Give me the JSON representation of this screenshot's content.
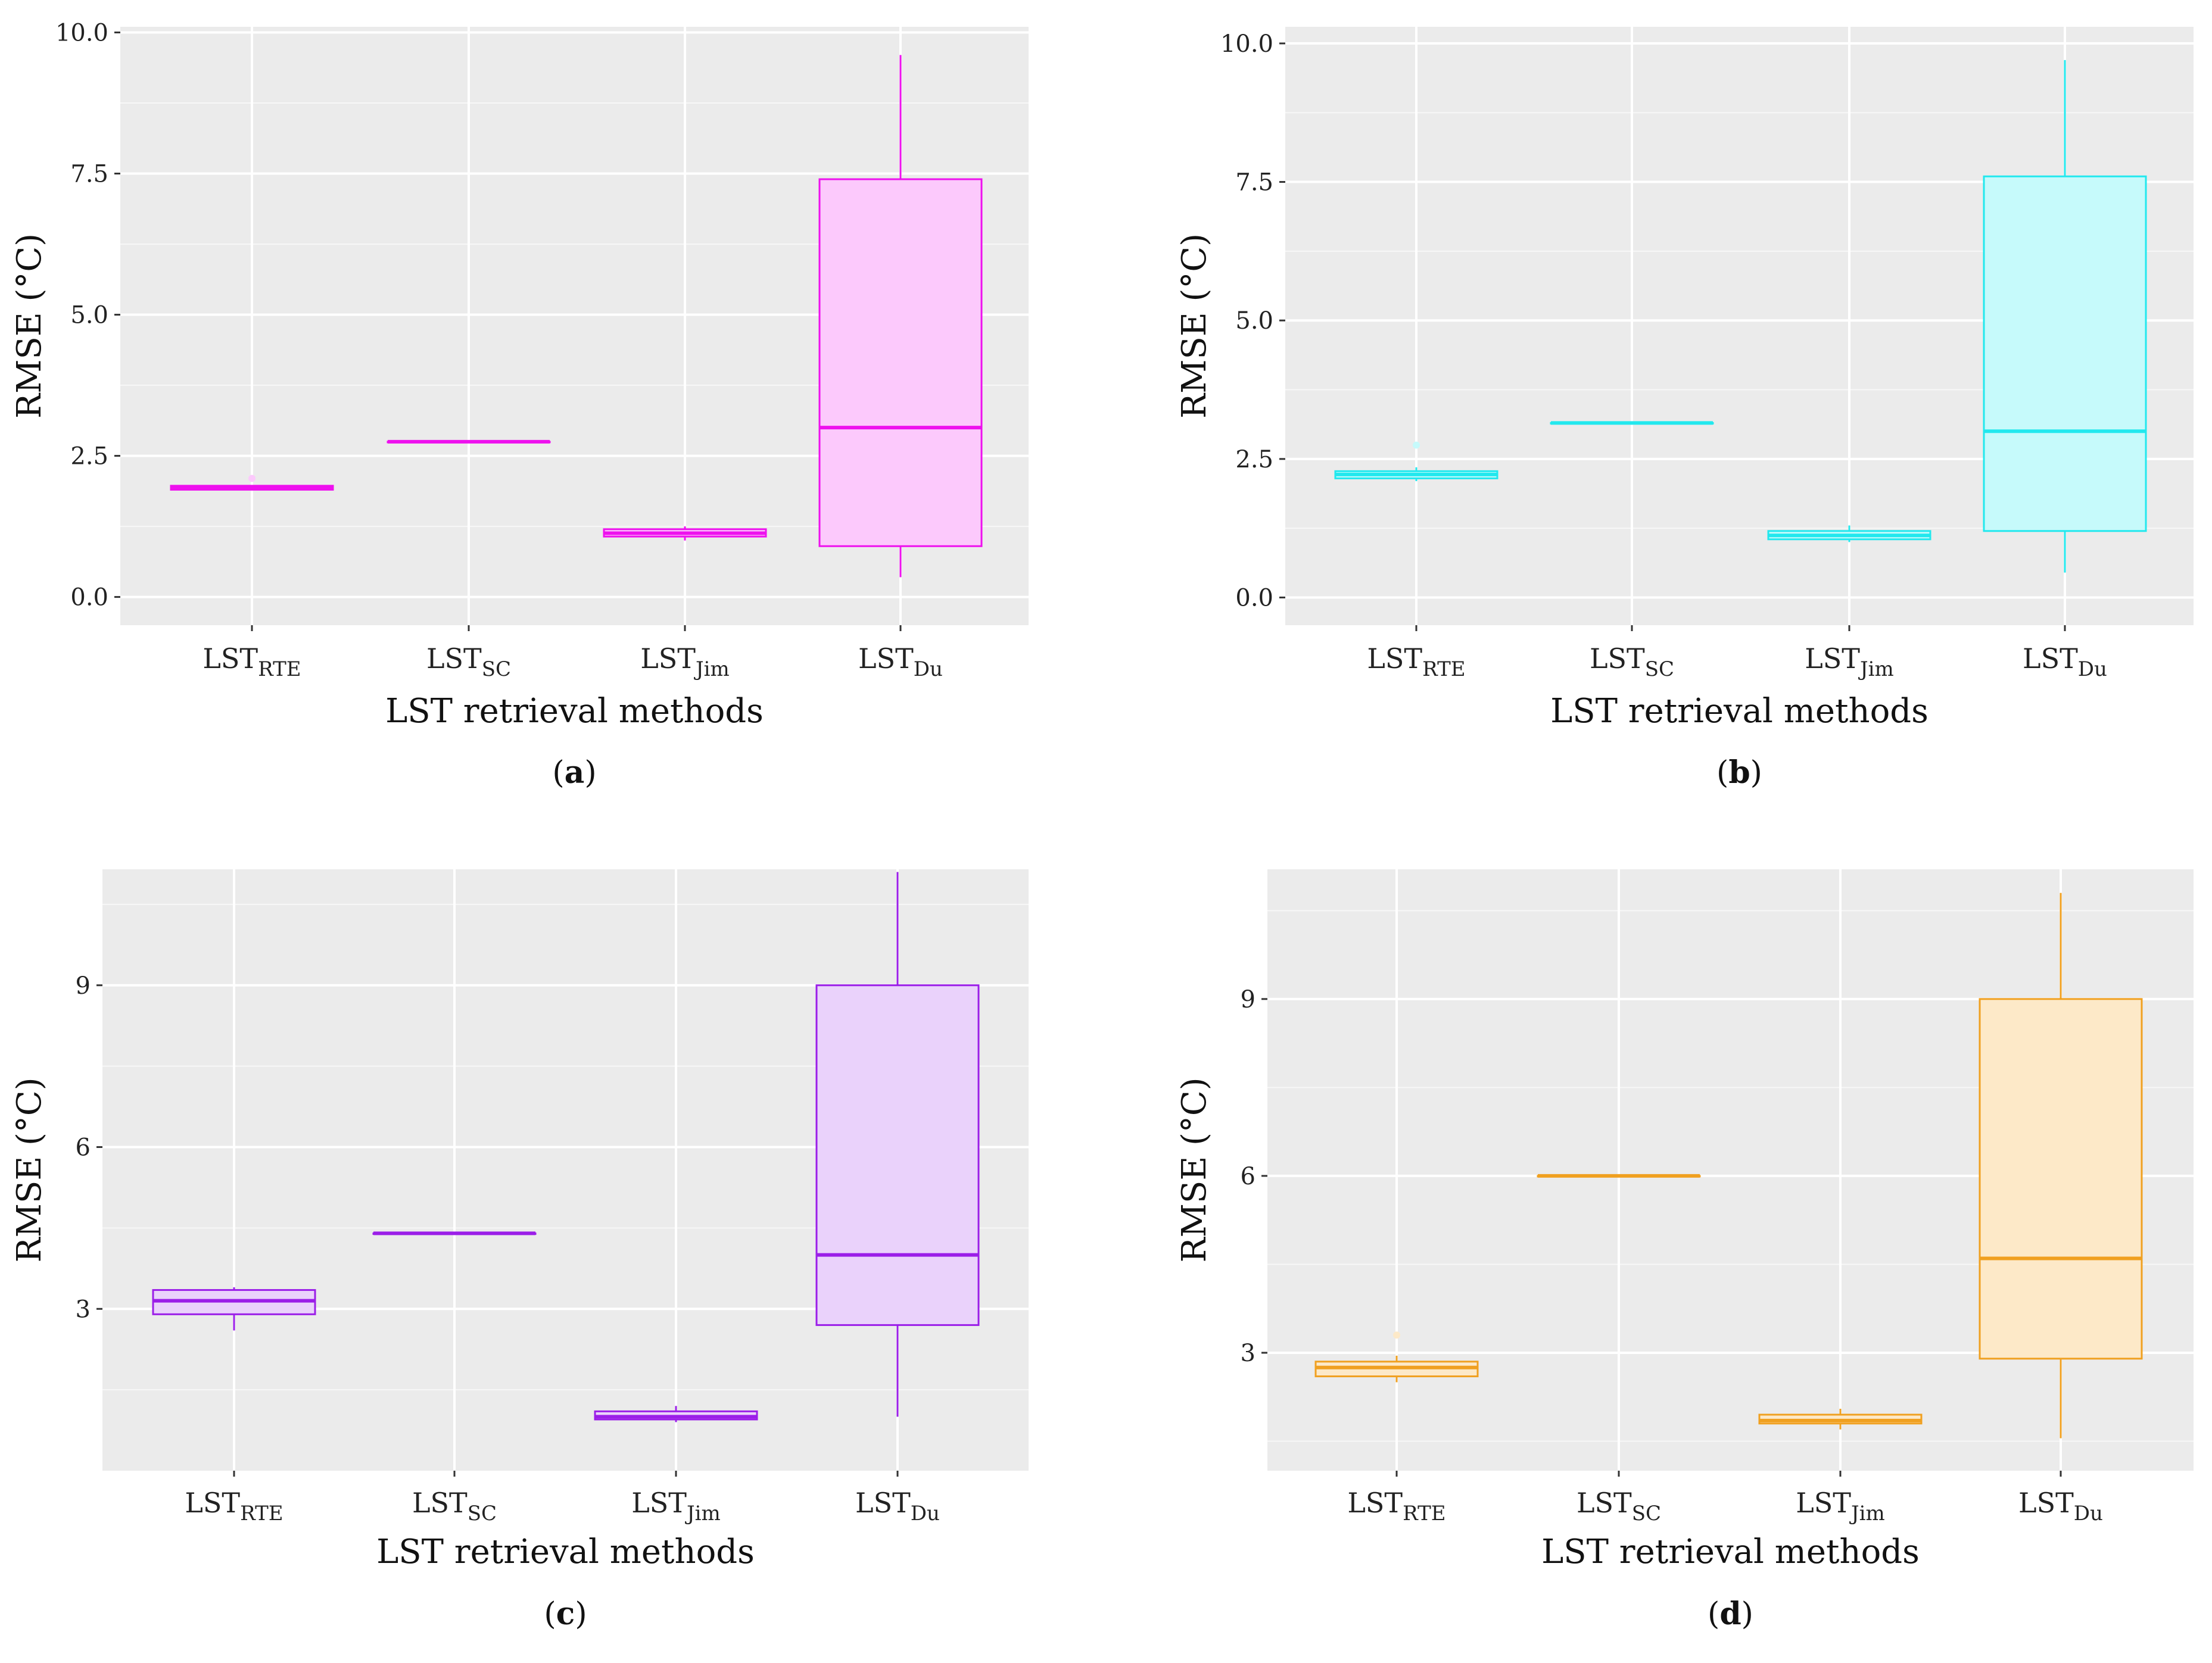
{
  "figure": {
    "panels": [
      "(a)",
      "(b)",
      "(c)",
      "(d)"
    ]
  },
  "chart_data": [
    {
      "type": "box",
      "panel_label": "(a)",
      "panel_letter": "a",
      "color": "#ee11ee",
      "fill": "#fcc9fc",
      "xlabel": "LST retrieval methods",
      "ylabel": "RMSE (°C)",
      "ylim": [
        -0.5,
        10.1
      ],
      "yticks": [
        0.0,
        2.5,
        5.0,
        7.5,
        10.0
      ],
      "ytick_labels": [
        "0.0",
        "2.5",
        "5.0",
        "7.5",
        "10.0"
      ],
      "categories": [
        {
          "base": "LST",
          "sub": "RTE"
        },
        {
          "base": "LST",
          "sub": "SC"
        },
        {
          "base": "LST",
          "sub": "Jim"
        },
        {
          "base": "LST",
          "sub": "Du"
        }
      ],
      "boxes": [
        {
          "whisker_low": 1.9,
          "q1": 1.9,
          "median": 1.93,
          "q3": 1.97,
          "whisker_high": 1.97,
          "outliers": [
            2.1
          ]
        },
        {
          "whisker_low": 2.75,
          "q1": 2.75,
          "median": 2.75,
          "q3": 2.75,
          "whisker_high": 2.75,
          "outliers": []
        },
        {
          "whisker_low": 1.0,
          "q1": 1.07,
          "median": 1.13,
          "q3": 1.2,
          "whisker_high": 1.25,
          "outliers": []
        },
        {
          "whisker_low": 0.35,
          "q1": 0.9,
          "median": 3.0,
          "q3": 7.4,
          "whisker_high": 9.6,
          "outliers": []
        }
      ]
    },
    {
      "type": "box",
      "panel_label": "(b)",
      "panel_letter": "b",
      "color": "#22e8ee",
      "fill": "#c6fafb",
      "xlabel": "LST retrieval methods",
      "ylabel": "RMSE (°C)",
      "ylim": [
        -0.5,
        10.3
      ],
      "yticks": [
        0.0,
        2.5,
        5.0,
        7.5,
        10.0
      ],
      "ytick_labels": [
        "0.0",
        "2.5",
        "5.0",
        "7.5",
        "10.0"
      ],
      "categories": [
        {
          "base": "LST",
          "sub": "RTE"
        },
        {
          "base": "LST",
          "sub": "SC"
        },
        {
          "base": "LST",
          "sub": "Jim"
        },
        {
          "base": "LST",
          "sub": "Du"
        }
      ],
      "boxes": [
        {
          "whisker_low": 2.1,
          "q1": 2.15,
          "median": 2.22,
          "q3": 2.28,
          "whisker_high": 2.35,
          "outliers": [
            2.75
          ]
        },
        {
          "whisker_low": 3.15,
          "q1": 3.15,
          "median": 3.15,
          "q3": 3.15,
          "whisker_high": 3.15,
          "outliers": []
        },
        {
          "whisker_low": 1.0,
          "q1": 1.05,
          "median": 1.12,
          "q3": 1.2,
          "whisker_high": 1.3,
          "outliers": []
        },
        {
          "whisker_low": 0.45,
          "q1": 1.2,
          "median": 3.0,
          "q3": 7.6,
          "whisker_high": 9.7,
          "outliers": []
        }
      ]
    },
    {
      "type": "box",
      "panel_label": "(c)",
      "panel_letter": "c",
      "color": "#9b1ee8",
      "fill": "#ead2fb",
      "xlabel": "LST retrieval methods",
      "ylabel": "RMSE (°C)",
      "ylim": [
        0.0,
        11.15
      ],
      "yticks": [
        3,
        6,
        9
      ],
      "ytick_labels": [
        "3",
        "6",
        "9"
      ],
      "categories": [
        {
          "base": "LST",
          "sub": "RTE"
        },
        {
          "base": "LST",
          "sub": "SC"
        },
        {
          "base": "LST",
          "sub": "Jim"
        },
        {
          "base": "LST",
          "sub": "Du"
        }
      ],
      "boxes": [
        {
          "whisker_low": 2.6,
          "q1": 2.9,
          "median": 3.15,
          "q3": 3.35,
          "whisker_high": 3.4,
          "outliers": []
        },
        {
          "whisker_low": 4.4,
          "q1": 4.4,
          "median": 4.4,
          "q3": 4.4,
          "whisker_high": 4.4,
          "outliers": []
        },
        {
          "whisker_low": 0.9,
          "q1": 0.95,
          "median": 1.0,
          "q3": 1.1,
          "whisker_high": 1.2,
          "outliers": []
        },
        {
          "whisker_low": 1.0,
          "q1": 2.7,
          "median": 4.0,
          "q3": 9.0,
          "whisker_high": 11.1,
          "outliers": []
        }
      ]
    },
    {
      "type": "box",
      "panel_label": "(d)",
      "panel_letter": "d",
      "color": "#f0a020",
      "fill": "#fde9c8",
      "xlabel": "LST retrieval methods",
      "ylabel": "RMSE (°C)",
      "ylim": [
        1.0,
        11.2
      ],
      "yticks": [
        3,
        6,
        9
      ],
      "ytick_labels": [
        "3",
        "6",
        "9"
      ],
      "categories": [
        {
          "base": "LST",
          "sub": "RTE"
        },
        {
          "base": "LST",
          "sub": "SC"
        },
        {
          "base": "LST",
          "sub": "Jim"
        },
        {
          "base": "LST",
          "sub": "Du"
        }
      ],
      "boxes": [
        {
          "whisker_low": 2.5,
          "q1": 2.6,
          "median": 2.75,
          "q3": 2.85,
          "whisker_high": 2.95,
          "outliers": [
            3.3
          ]
        },
        {
          "whisker_low": 6.0,
          "q1": 6.0,
          "median": 6.0,
          "q3": 6.0,
          "whisker_high": 6.0,
          "outliers": []
        },
        {
          "whisker_low": 1.7,
          "q1": 1.8,
          "median": 1.85,
          "q3": 1.95,
          "whisker_high": 2.05,
          "outliers": []
        },
        {
          "whisker_low": 1.55,
          "q1": 2.9,
          "median": 4.6,
          "q3": 9.0,
          "whisker_high": 10.8,
          "outliers": []
        }
      ]
    }
  ]
}
